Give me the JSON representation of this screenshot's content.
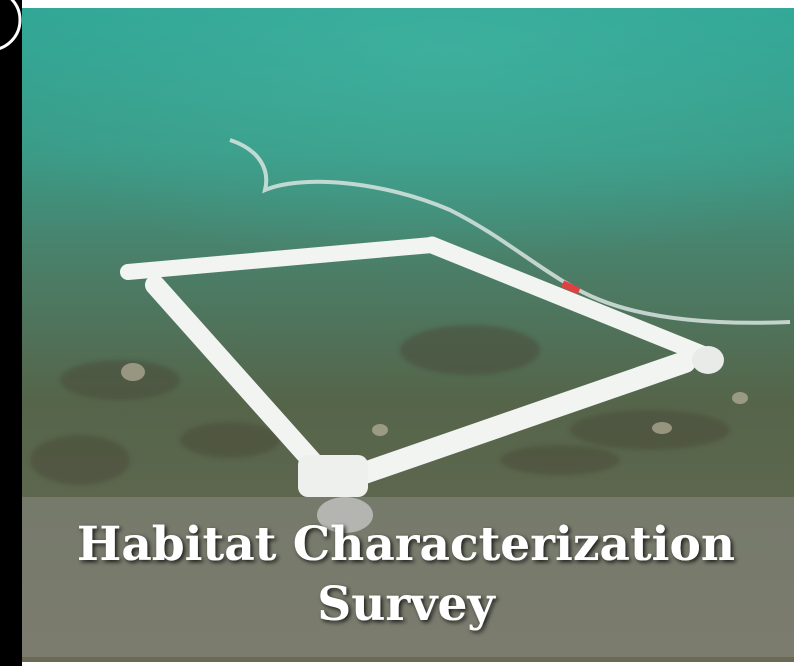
{
  "caption": {
    "lines": [
      "Habitat Characterization",
      "Survey"
    ]
  }
}
